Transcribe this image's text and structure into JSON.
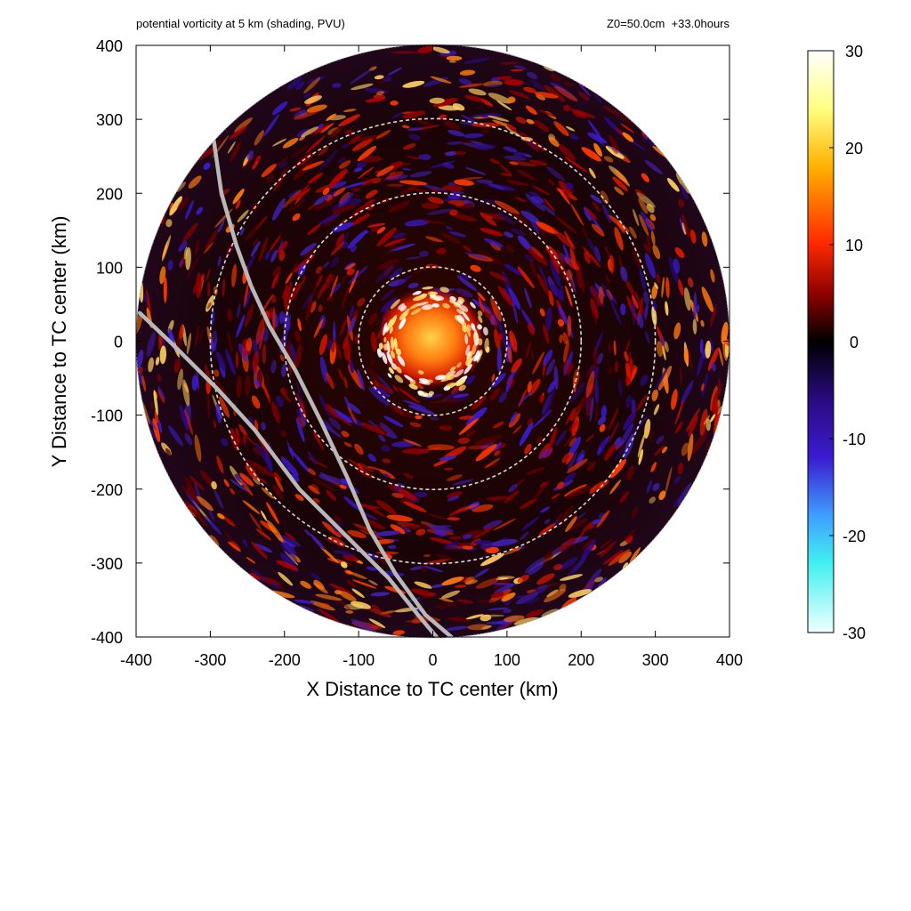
{
  "chart_data": {
    "type": "heatmap",
    "title_left": "potential vorticity at 5 km (shading, PVU)",
    "title_right": "Z0=50.0cm  +33.0hours",
    "xlabel": "X Distance to TC center (km)",
    "ylabel": "Y Distance to TC center (km)",
    "xlim": [
      -400,
      400
    ],
    "ylim": [
      -400,
      400
    ],
    "x_ticks": [
      -400,
      -300,
      -200,
      -100,
      0,
      100,
      200,
      300,
      400
    ],
    "y_ticks": [
      -400,
      -300,
      -200,
      -100,
      0,
      100,
      200,
      300,
      400
    ],
    "domain_radius_km": 400,
    "range_rings_km": [
      100,
      200,
      300
    ],
    "colorbar": {
      "range": [
        -30,
        30
      ],
      "ticks": [
        30,
        20,
        10,
        0,
        -10,
        -20,
        -30
      ]
    },
    "coastlines": [
      [
        [
          -395,
          38
        ],
        [
          -350,
          -5
        ],
        [
          -290,
          -65
        ],
        [
          -240,
          -120
        ],
        [
          -180,
          -200
        ],
        [
          -120,
          -260
        ],
        [
          -60,
          -320
        ],
        [
          -20,
          -370
        ],
        [
          5,
          -400
        ]
      ],
      [
        [
          -295,
          270
        ],
        [
          -285,
          200
        ],
        [
          -265,
          130
        ],
        [
          -245,
          75
        ],
        [
          -220,
          20
        ],
        [
          -185,
          -40
        ],
        [
          -150,
          -110
        ],
        [
          -115,
          -185
        ],
        [
          -85,
          -255
        ],
        [
          -50,
          -315
        ],
        [
          -10,
          -370
        ],
        [
          25,
          -400
        ]
      ]
    ],
    "colors": {
      "coastline": "#b8b8b8",
      "ring": "#d8d8d8",
      "pv_high": "#ffffe0",
      "pv_mid": "#ff2a00",
      "pv_zero": "#000000",
      "pv_low": "#3a1cd0",
      "pv_min": "#e8ffff"
    }
  }
}
